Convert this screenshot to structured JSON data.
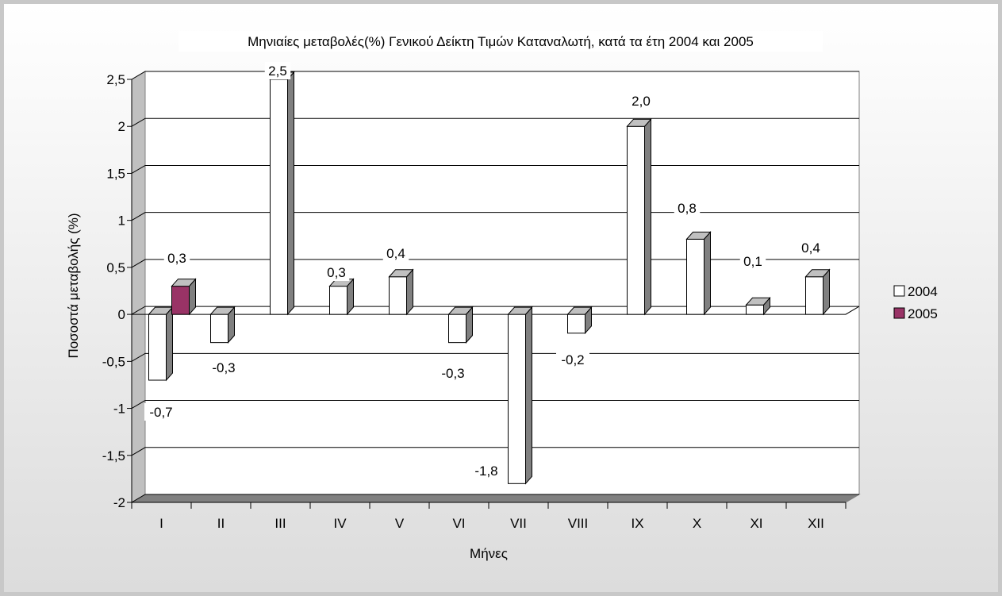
{
  "chart_data": {
    "type": "bar",
    "title": "Μηνιαίες μεταβολές(%) Γενικού Δείκτη Τιμών Καταναλωτή, κατά τα έτη 2004 και 2005",
    "xlabel": "Μήνες",
    "ylabel": "Ποσοστά μεταβολής (%)",
    "categories": [
      "I",
      "II",
      "III",
      "IV",
      "V",
      "VI",
      "VII",
      "VIII",
      "IX",
      "X",
      "XI",
      "XII"
    ],
    "ylim": [
      -2,
      2.5
    ],
    "yticks": [
      2.5,
      2,
      1.5,
      1,
      0.5,
      0,
      -0.5,
      -1,
      -1.5,
      -2
    ],
    "ytick_labels": [
      "2,5",
      "2",
      "1,5",
      "1",
      "0,5",
      "0",
      "-0,5",
      "-1",
      "-1,5",
      "-2"
    ],
    "grid": true,
    "legend_position": "right",
    "series": [
      {
        "name": "2004",
        "color": "#ffffff",
        "values": [
          -0.7,
          -0.3,
          2.5,
          0.3,
          0.4,
          -0.3,
          -1.8,
          -0.2,
          2.0,
          0.8,
          0.1,
          0.4
        ],
        "labels": [
          "-0,7",
          "-0,3",
          "2,5",
          "0,3",
          "0,4",
          "-0,3",
          "-1,8",
          "-0,2",
          "2,0",
          "0,8",
          "0,1",
          "0,4"
        ]
      },
      {
        "name": "2005",
        "color": "#993366",
        "values": [
          0.3,
          null,
          null,
          null,
          null,
          null,
          null,
          null,
          null,
          null,
          null,
          null
        ],
        "labels": [
          "0,3",
          "",
          "",
          "",
          "",
          "",
          "",
          "",
          "",
          "",
          "",
          ""
        ]
      }
    ]
  }
}
